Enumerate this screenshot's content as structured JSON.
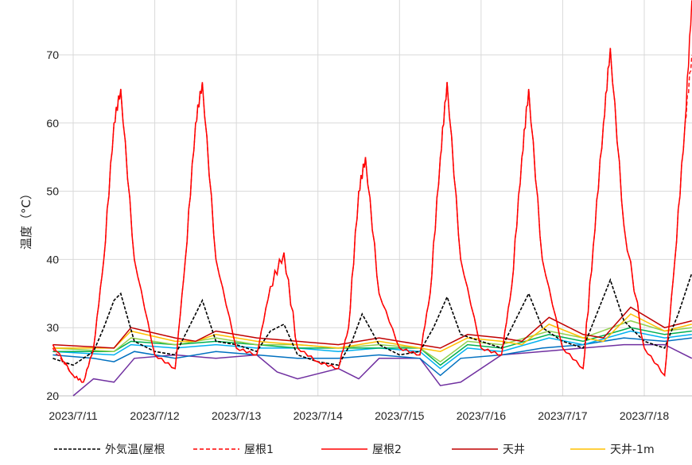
{
  "chart_data": {
    "type": "line",
    "title": "",
    "xlabel": "",
    "ylabel": "温度（°C）",
    "ylim": [
      20,
      78
    ],
    "y_ticks": [
      "20",
      "30",
      "40",
      "50",
      "60",
      "70"
    ],
    "x_ticks": [
      "2023/7/11",
      "2023/7/12",
      "2023/7/13",
      "2023/7/14",
      "2023/7/15",
      "2023/7/16",
      "2023/7/17",
      "2023/7/18"
    ],
    "grid": "vertical-and-horizontal",
    "legend_position": "bottom",
    "series": [
      {
        "name": "外気温(屋根",
        "color": "#000000",
        "style": "dashed",
        "x": [
          "2023/7/10 18:00",
          "2023/7/11 00:00",
          "2023/7/11 06:00",
          "2023/7/11 09:00",
          "2023/7/11 12:00",
          "2023/7/11 14:00",
          "2023/7/11 18:00",
          "2023/7/12 00:00",
          "2023/7/12 06:00",
          "2023/7/12 09:00",
          "2023/7/12 12:00",
          "2023/7/12 14:00",
          "2023/7/12 18:00",
          "2023/7/13 00:00",
          "2023/7/13 06:00",
          "2023/7/13 10:00",
          "2023/7/13 14:00",
          "2023/7/13 18:00",
          "2023/7/14 00:00",
          "2023/7/14 06:00",
          "2023/7/14 10:00",
          "2023/7/14 13:00",
          "2023/7/14 18:00",
          "2023/7/15 00:00",
          "2023/7/15 06:00",
          "2023/7/15 10:00",
          "2023/7/15 14:00",
          "2023/7/15 18:00",
          "2023/7/16 00:00",
          "2023/7/16 06:00",
          "2023/7/16 10:00",
          "2023/7/16 14:00",
          "2023/7/16 18:00",
          "2023/7/17 00:00",
          "2023/7/17 06:00",
          "2023/7/17 10:00",
          "2023/7/17 14:00",
          "2023/7/17 18:00",
          "2023/7/18 00:00",
          "2023/7/18 06:00",
          "2023/7/18 10:00",
          "2023/7/18 14:00"
        ],
        "y": [
          25.5,
          24.5,
          26.5,
          30,
          34,
          35,
          28,
          26.5,
          26,
          29,
          32,
          34,
          28,
          27.5,
          26.5,
          29.5,
          30.5,
          26,
          25,
          24.5,
          28,
          32,
          27.5,
          26,
          26.5,
          30,
          34.5,
          29,
          28,
          27,
          31,
          35,
          30,
          28,
          27,
          32,
          37,
          31,
          28,
          27,
          32,
          38
        ]
      },
      {
        "name": "屋根1",
        "color": "#ff0000",
        "style": "dashed",
        "x": [
          "2023/7/10 18:00",
          "2023/7/11 00:00",
          "2023/7/11 03:00",
          "2023/7/11 06:00",
          "2023/7/11 09:00",
          "2023/7/11 12:00",
          "2023/7/11 14:00",
          "2023/7/11 18:00",
          "2023/7/12 00:00",
          "2023/7/12 06:00",
          "2023/7/12 09:00",
          "2023/7/12 12:00",
          "2023/7/12 14:00",
          "2023/7/12 18:00",
          "2023/7/13 00:00",
          "2023/7/13 06:00",
          "2023/7/13 10:00",
          "2023/7/13 14:00",
          "2023/7/13 18:00",
          "2023/7/14 00:00",
          "2023/7/14 06:00",
          "2023/7/14 09:00",
          "2023/7/14 12:00",
          "2023/7/14 14:00",
          "2023/7/14 18:00",
          "2023/7/15 00:00",
          "2023/7/15 06:00",
          "2023/7/15 09:00",
          "2023/7/15 12:00",
          "2023/7/15 14:00",
          "2023/7/15 18:00",
          "2023/7/16 00:00",
          "2023/7/16 06:00",
          "2023/7/16 09:00",
          "2023/7/16 12:00",
          "2023/7/16 14:00",
          "2023/7/16 18:00",
          "2023/7/17 00:00",
          "2023/7/17 06:00",
          "2023/7/17 09:00",
          "2023/7/17 12:00",
          "2023/7/17 14:00",
          "2023/7/17 18:00",
          "2023/7/18 00:00",
          "2023/7/18 06:00",
          "2023/7/18 09:00",
          "2023/7/18 12:00",
          "2023/7/18 14:00"
        ],
        "y": [
          27,
          23,
          22,
          27,
          40,
          60,
          65,
          40,
          26,
          24,
          40,
          60,
          66,
          40,
          27,
          26,
          36,
          41,
          27,
          25,
          24,
          30,
          50,
          55,
          35,
          27,
          26,
          35,
          55,
          66,
          40,
          27,
          26,
          36,
          55,
          65,
          40,
          27,
          24,
          42,
          60,
          71,
          45,
          27,
          23,
          40,
          60,
          70
        ]
      },
      {
        "name": "屋根2",
        "color": "#ff0000",
        "style": "solid",
        "x": [
          "2023/7/10 18:00",
          "2023/7/11 00:00",
          "2023/7/11 03:00",
          "2023/7/11 06:00",
          "2023/7/11 09:00",
          "2023/7/11 12:00",
          "2023/7/11 14:00",
          "2023/7/11 18:00",
          "2023/7/12 00:00",
          "2023/7/12 06:00",
          "2023/7/12 09:00",
          "2023/7/12 12:00",
          "2023/7/12 14:00",
          "2023/7/12 18:00",
          "2023/7/13 00:00",
          "2023/7/13 06:00",
          "2023/7/13 10:00",
          "2023/7/13 14:00",
          "2023/7/13 18:00",
          "2023/7/14 00:00",
          "2023/7/14 06:00",
          "2023/7/14 09:00",
          "2023/7/14 12:00",
          "2023/7/14 14:00",
          "2023/7/14 18:00",
          "2023/7/15 00:00",
          "2023/7/15 06:00",
          "2023/7/15 09:00",
          "2023/7/15 12:00",
          "2023/7/15 14:00",
          "2023/7/15 18:00",
          "2023/7/16 00:00",
          "2023/7/16 06:00",
          "2023/7/16 09:00",
          "2023/7/16 12:00",
          "2023/7/16 14:00",
          "2023/7/16 18:00",
          "2023/7/17 00:00",
          "2023/7/17 06:00",
          "2023/7/17 09:00",
          "2023/7/17 12:00",
          "2023/7/17 14:00",
          "2023/7/17 18:00",
          "2023/7/18 00:00",
          "2023/7/18 06:00",
          "2023/7/18 09:00",
          "2023/7/18 12:00",
          "2023/7/18 14:00"
        ],
        "y": [
          27.5,
          23,
          22,
          27,
          40,
          60,
          65,
          40,
          26,
          24,
          40,
          60,
          66,
          40,
          27,
          26,
          36,
          41,
          27,
          25,
          24,
          30,
          50,
          55,
          35,
          27,
          26,
          35,
          55,
          66,
          40,
          27,
          26,
          36,
          55,
          65,
          40,
          27,
          24,
          42,
          60,
          71,
          45,
          27,
          23,
          40,
          60,
          78
        ]
      },
      {
        "name": "天井",
        "color": "#c00000",
        "style": "solid",
        "x": [
          "2023/7/10 18:00",
          "2023/7/11 12:00",
          "2023/7/11 17:00",
          "2023/7/12 06:00",
          "2023/7/12 12:00",
          "2023/7/12 18:00",
          "2023/7/13 06:00",
          "2023/7/13 18:00",
          "2023/7/14 06:00",
          "2023/7/14 18:00",
          "2023/7/15 06:00",
          "2023/7/15 12:00",
          "2023/7/15 20:00",
          "2023/7/16 06:00",
          "2023/7/16 12:00",
          "2023/7/16 20:00",
          "2023/7/17 06:00",
          "2023/7/17 12:00",
          "2023/7/17 20:00",
          "2023/7/18 06:00",
          "2023/7/18 14:00"
        ],
        "y": [
          27.5,
          27,
          30,
          28.5,
          28,
          29.5,
          28.5,
          28,
          27.5,
          28.5,
          27.5,
          27,
          29,
          28.5,
          28,
          31.5,
          29,
          28.5,
          33,
          30,
          31
        ]
      },
      {
        "name": "天井-1m",
        "color": "#ffc000",
        "style": "solid",
        "x": [
          "2023/7/10 18:00",
          "2023/7/11 12:00",
          "2023/7/11 17:00",
          "2023/7/12 06:00",
          "2023/7/12 12:00",
          "2023/7/12 18:00",
          "2023/7/13 06:00",
          "2023/7/13 18:00",
          "2023/7/14 06:00",
          "2023/7/14 18:00",
          "2023/7/15 06:00",
          "2023/7/15 12:00",
          "2023/7/15 20:00",
          "2023/7/16 06:00",
          "2023/7/16 12:00",
          "2023/7/16 20:00",
          "2023/7/17 06:00",
          "2023/7/17 12:00",
          "2023/7/17 20:00",
          "2023/7/18 06:00",
          "2023/7/18 14:00"
        ],
        "y": [
          27,
          27,
          29.5,
          28,
          28,
          29,
          28,
          27.5,
          27,
          28,
          27,
          26.5,
          28.5,
          28,
          27.5,
          30.5,
          28.5,
          28,
          32,
          29.5,
          30.5
        ]
      },
      {
        "color": "#92d050",
        "style": "solid",
        "x": [
          "2023/7/10 18:00",
          "2023/7/11 12:00",
          "2023/7/11 17:00",
          "2023/7/12 06:00",
          "2023/7/12 18:00",
          "2023/7/13 06:00",
          "2023/7/13 18:00",
          "2023/7/14 06:00",
          "2023/7/14 18:00",
          "2023/7/15 06:00",
          "2023/7/15 12:00",
          "2023/7/15 20:00",
          "2023/7/16 06:00",
          "2023/7/16 20:00",
          "2023/7/17 06:00",
          "2023/7/17 20:00",
          "2023/7/18 06:00",
          "2023/7/18 14:00"
        ],
        "y": [
          27,
          26.5,
          28.5,
          27.5,
          28.5,
          27.5,
          27.5,
          27,
          27.5,
          27,
          25,
          28,
          27.5,
          29.5,
          28.5,
          31,
          29.5,
          30
        ]
      },
      {
        "color": "#00b050",
        "style": "solid",
        "x": [
          "2023/7/10 18:00",
          "2023/7/11 12:00",
          "2023/7/11 17:00",
          "2023/7/12 06:00",
          "2023/7/12 18:00",
          "2023/7/13 06:00",
          "2023/7/13 18:00",
          "2023/7/14 06:00",
          "2023/7/14 18:00",
          "2023/7/15 06:00",
          "2023/7/15 12:00",
          "2023/7/15 20:00",
          "2023/7/16 06:00",
          "2023/7/16 20:00",
          "2023/7/17 06:00",
          "2023/7/17 20:00",
          "2023/7/18 06:00",
          "2023/7/18 14:00"
        ],
        "y": [
          26.5,
          26.5,
          28,
          27.5,
          28,
          27.5,
          27,
          27,
          27,
          27,
          24.5,
          27.5,
          27,
          29,
          28,
          30,
          29,
          29.5
        ]
      },
      {
        "color": "#00b0f0",
        "style": "solid",
        "x": [
          "2023/7/10 18:00",
          "2023/7/11 12:00",
          "2023/7/11 17:00",
          "2023/7/12 06:00",
          "2023/7/12 18:00",
          "2023/7/13 06:00",
          "2023/7/13 18:00",
          "2023/7/14 06:00",
          "2023/7/14 18:00",
          "2023/7/15 06:00",
          "2023/7/15 12:00",
          "2023/7/15 20:00",
          "2023/7/16 06:00",
          "2023/7/16 20:00",
          "2023/7/17 06:00",
          "2023/7/17 20:00",
          "2023/7/18 06:00",
          "2023/7/18 14:00"
        ],
        "y": [
          26.5,
          26,
          27.5,
          27,
          27.5,
          27,
          27,
          26.5,
          27,
          26.5,
          24,
          27,
          26.5,
          28.5,
          27.5,
          29.5,
          28.5,
          29
        ]
      },
      {
        "color": "#0070c0",
        "style": "solid",
        "x": [
          "2023/7/10 18:00",
          "2023/7/11 06:00",
          "2023/7/11 12:00",
          "2023/7/11 18:00",
          "2023/7/12 06:00",
          "2023/7/12 18:00",
          "2023/7/13 06:00",
          "2023/7/13 18:00",
          "2023/7/14 06:00",
          "2023/7/14 18:00",
          "2023/7/15 06:00",
          "2023/7/15 12:00",
          "2023/7/15 18:00",
          "2023/7/16 06:00",
          "2023/7/16 18:00",
          "2023/7/17 06:00",
          "2023/7/17 18:00",
          "2023/7/18 06:00",
          "2023/7/18 14:00"
        ],
        "y": [
          26,
          25.5,
          25,
          26.5,
          25.5,
          26.5,
          26,
          25.5,
          25.5,
          26,
          25.5,
          23,
          25.5,
          26,
          27,
          27.5,
          28.5,
          28,
          28.5
        ]
      },
      {
        "color": "#7030a0",
        "style": "solid",
        "x": [
          "2023/7/11 00:00",
          "2023/7/11 06:00",
          "2023/7/11 12:00",
          "2023/7/11 18:00",
          "2023/7/12 06:00",
          "2023/7/12 18:00",
          "2023/7/13 06:00",
          "2023/7/13 12:00",
          "2023/7/13 18:00",
          "2023/7/14 06:00",
          "2023/7/14 12:00",
          "2023/7/14 18:00",
          "2023/7/15 06:00",
          "2023/7/15 12:00",
          "2023/7/15 18:00",
          "2023/7/16 06:00",
          "2023/7/16 18:00",
          "2023/7/17 06:00",
          "2023/7/17 18:00",
          "2023/7/18 06:00",
          "2023/7/18 14:00"
        ],
        "y": [
          20,
          22.5,
          22,
          25.5,
          26,
          25.5,
          26,
          23.5,
          22.5,
          24,
          22.5,
          25.5,
          25.5,
          21.5,
          22,
          26,
          26.5,
          27,
          27.5,
          27.5,
          25.5
        ]
      }
    ],
    "legend": [
      "外気温(屋根",
      "屋根1",
      "屋根2",
      "天井",
      "天井-1m"
    ]
  }
}
